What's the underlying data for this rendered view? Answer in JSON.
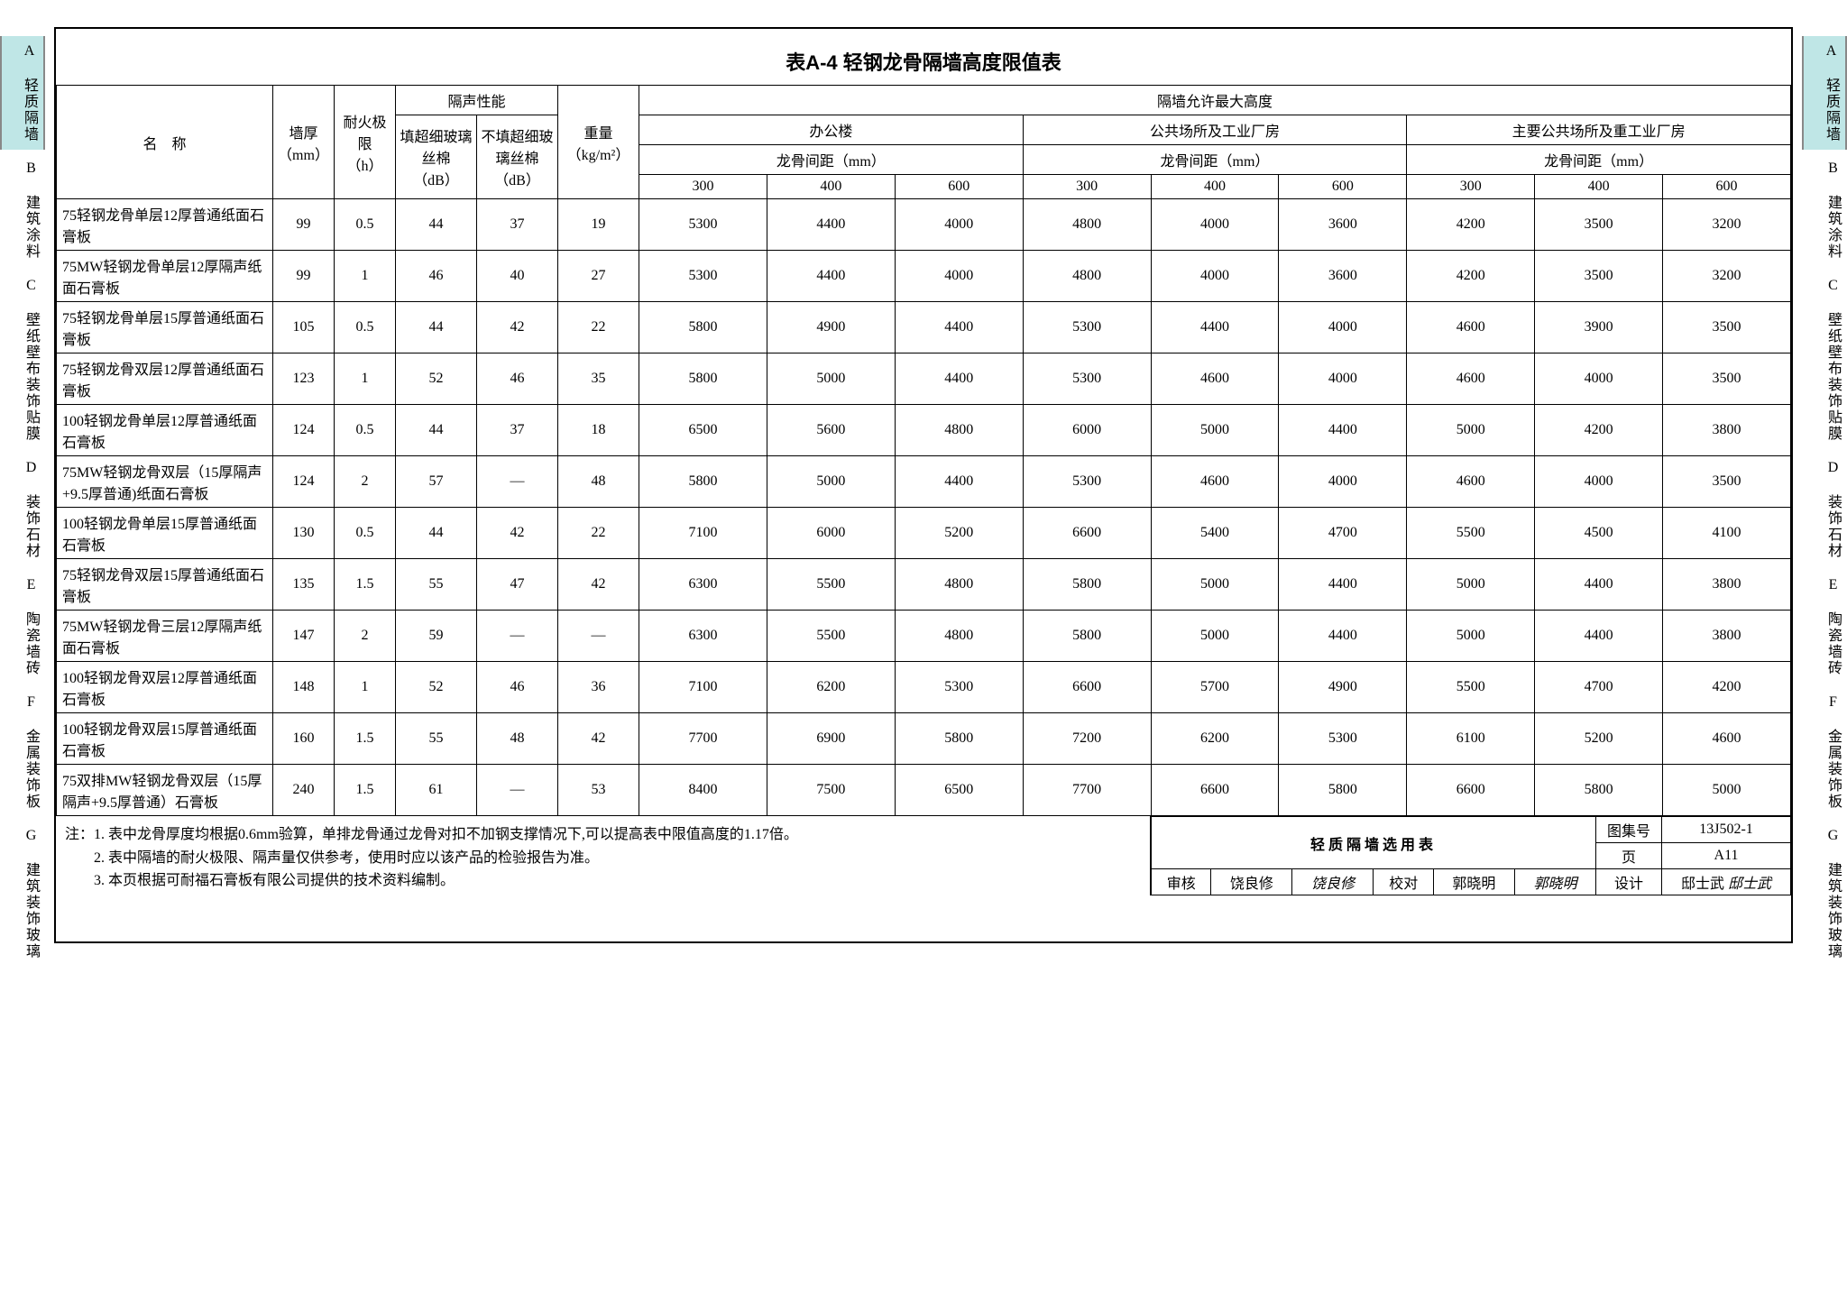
{
  "title": "表A-4 轻钢龙骨隔墙高度限值表",
  "side_tabs": [
    {
      "code": "A",
      "label": "轻质隔墙",
      "active": true
    },
    {
      "code": "B",
      "label": "建筑涂料",
      "active": false
    },
    {
      "code": "C",
      "label": "壁纸壁布装饰贴膜",
      "active": false
    },
    {
      "code": "D",
      "label": "装饰石材",
      "active": false
    },
    {
      "code": "E",
      "label": "陶瓷墙砖",
      "active": false
    },
    {
      "code": "F",
      "label": "金属装饰板",
      "active": false
    },
    {
      "code": "G",
      "label": "建筑装饰玻璃",
      "active": false
    }
  ],
  "headers": {
    "name": "名　称",
    "thick": "墙厚",
    "thick_unit": "（mm）",
    "fire": "耐火极限",
    "fire_unit": "（h）",
    "acoustic": "隔声性能",
    "fill": "填超细玻璃丝棉",
    "fill_unit": "（dB）",
    "nofill": "不填超细玻璃丝棉",
    "nofill_unit": "（dB）",
    "weight": "重量",
    "weight_unit": "（kg/m²）",
    "maxh": "隔墙允许最大高度",
    "g1": "办公楼",
    "g2": "公共场所及工业厂房",
    "g3": "主要公共场所及重工业厂房",
    "spacing": "龙骨间距（mm）",
    "s300": "300",
    "s400": "400",
    "s600": "600"
  },
  "rows": [
    {
      "name": "75轻钢龙骨单层12厚普通纸面石膏板",
      "thick": "99",
      "fire": "0.5",
      "fill": "44",
      "nofill": "37",
      "weight": "19",
      "v": [
        "5300",
        "4400",
        "4000",
        "4800",
        "4000",
        "3600",
        "4200",
        "3500",
        "3200"
      ]
    },
    {
      "name": "75MW轻钢龙骨单层12厚隔声纸面石膏板",
      "thick": "99",
      "fire": "1",
      "fill": "46",
      "nofill": "40",
      "weight": "27",
      "v": [
        "5300",
        "4400",
        "4000",
        "4800",
        "4000",
        "3600",
        "4200",
        "3500",
        "3200"
      ]
    },
    {
      "name": "75轻钢龙骨单层15厚普通纸面石膏板",
      "thick": "105",
      "fire": "0.5",
      "fill": "44",
      "nofill": "42",
      "weight": "22",
      "v": [
        "5800",
        "4900",
        "4400",
        "5300",
        "4400",
        "4000",
        "4600",
        "3900",
        "3500"
      ]
    },
    {
      "name": "75轻钢龙骨双层12厚普通纸面石膏板",
      "thick": "123",
      "fire": "1",
      "fill": "52",
      "nofill": "46",
      "weight": "35",
      "v": [
        "5800",
        "5000",
        "4400",
        "5300",
        "4600",
        "4000",
        "4600",
        "4000",
        "3500"
      ]
    },
    {
      "name": "100轻钢龙骨单层12厚普通纸面石膏板",
      "thick": "124",
      "fire": "0.5",
      "fill": "44",
      "nofill": "37",
      "weight": "18",
      "v": [
        "6500",
        "5600",
        "4800",
        "6000",
        "5000",
        "4400",
        "5000",
        "4200",
        "3800"
      ]
    },
    {
      "name": "75MW轻钢龙骨双层（15厚隔声+9.5厚普通)纸面石膏板",
      "thick": "124",
      "fire": "2",
      "fill": "57",
      "nofill": "—",
      "weight": "48",
      "v": [
        "5800",
        "5000",
        "4400",
        "5300",
        "4600",
        "4000",
        "4600",
        "4000",
        "3500"
      ]
    },
    {
      "name": "100轻钢龙骨单层15厚普通纸面石膏板",
      "thick": "130",
      "fire": "0.5",
      "fill": "44",
      "nofill": "42",
      "weight": "22",
      "v": [
        "7100",
        "6000",
        "5200",
        "6600",
        "5400",
        "4700",
        "5500",
        "4500",
        "4100"
      ]
    },
    {
      "name": "75轻钢龙骨双层15厚普通纸面石膏板",
      "thick": "135",
      "fire": "1.5",
      "fill": "55",
      "nofill": "47",
      "weight": "42",
      "v": [
        "6300",
        "5500",
        "4800",
        "5800",
        "5000",
        "4400",
        "5000",
        "4400",
        "3800"
      ]
    },
    {
      "name": "75MW轻钢龙骨三层12厚隔声纸面石膏板",
      "thick": "147",
      "fire": "2",
      "fill": "59",
      "nofill": "—",
      "weight": "—",
      "v": [
        "6300",
        "5500",
        "4800",
        "5800",
        "5000",
        "4400",
        "5000",
        "4400",
        "3800"
      ]
    },
    {
      "name": "100轻钢龙骨双层12厚普通纸面石膏板",
      "thick": "148",
      "fire": "1",
      "fill": "52",
      "nofill": "46",
      "weight": "36",
      "v": [
        "7100",
        "6200",
        "5300",
        "6600",
        "5700",
        "4900",
        "5500",
        "4700",
        "4200"
      ]
    },
    {
      "name": "100轻钢龙骨双层15厚普通纸面石膏板",
      "thick": "160",
      "fire": "1.5",
      "fill": "55",
      "nofill": "48",
      "weight": "42",
      "v": [
        "7700",
        "6900",
        "5800",
        "7200",
        "6200",
        "5300",
        "6100",
        "5200",
        "4600"
      ]
    },
    {
      "name": "75双排MW轻钢龙骨双层（15厚隔声+9.5厚普通）石膏板",
      "thick": "240",
      "fire": "1.5",
      "fill": "61",
      "nofill": "—",
      "weight": "53",
      "v": [
        "8400",
        "7500",
        "6500",
        "7700",
        "6600",
        "5800",
        "6600",
        "5800",
        "5000"
      ]
    }
  ],
  "notes_label": "注：",
  "notes": [
    "1. 表中龙骨厚度均根据0.6mm验算，单排龙骨通过龙骨对扣不加钢支撑情况下,可以提高表中限值高度的1.17倍。",
    "2. 表中隔墙的耐火极限、隔声量仅供参考，使用时应以该产品的检验报告为准。",
    "3. 本页根据可耐福石膏板有限公司提供的技术资料编制。"
  ],
  "titleblock": {
    "main": "轻质隔墙选用表",
    "atlas_label": "图集号",
    "atlas_no": "13J502-1",
    "page_label": "页",
    "page_no": "A11",
    "check_label": "审核",
    "check_name": "饶良修",
    "check_sig": "饶良修",
    "proof_label": "校对",
    "proof_name": "郭晓明",
    "proof_sig": "郭晓明",
    "design_label": "设计",
    "design_name": "邸士武",
    "design_sig": "邸士武"
  },
  "style": {
    "border_color": "#000000",
    "tab_active_bg": "#bfe6e6",
    "font_main": "SimSun",
    "font_title_size": 22,
    "font_cell_size": 16
  }
}
